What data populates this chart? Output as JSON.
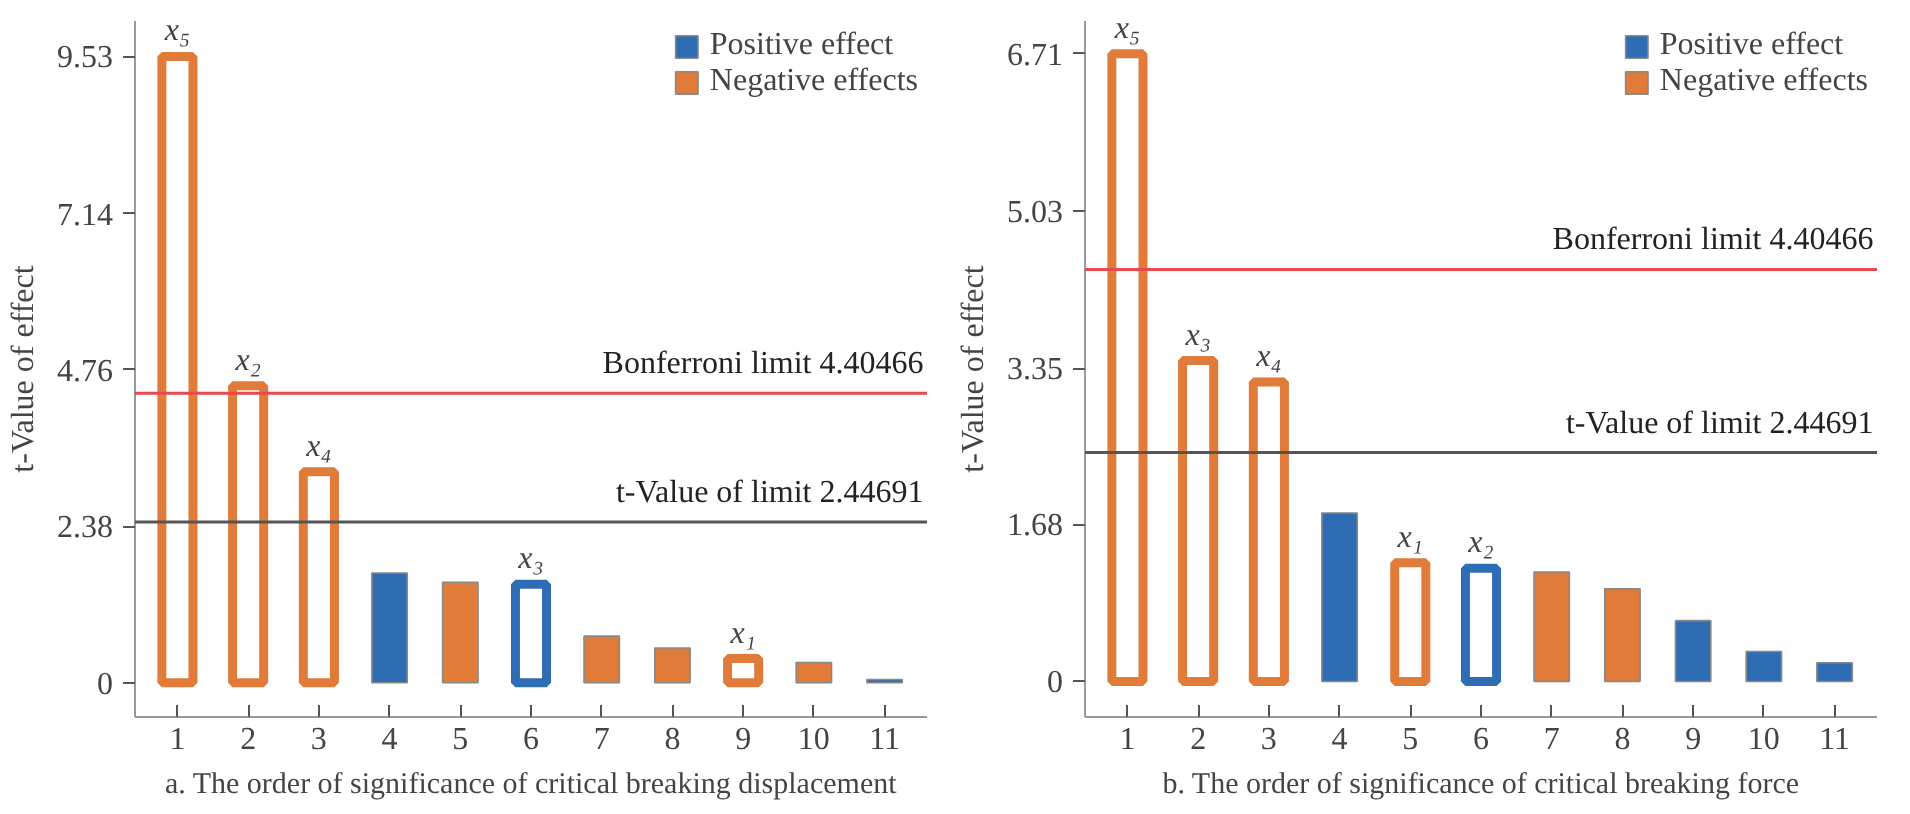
{
  "chart_data": [
    {
      "type": "bar",
      "title": "a. The order of significance of critical breaking displacement",
      "ylabel": "t-Value of effect",
      "categories": [
        "1",
        "2",
        "3",
        "4",
        "5",
        "6",
        "7",
        "8",
        "9",
        "10",
        "11"
      ],
      "series": [
        {
          "name": "Positive effect",
          "color": "#2e6db4",
          "values": [
            null,
            null,
            null,
            1.67,
            null,
            1.5,
            null,
            null,
            null,
            null,
            0.05
          ]
        },
        {
          "name": "Negative effects",
          "color": "#e07b39",
          "values": [
            9.53,
            4.52,
            3.21,
            null,
            1.53,
            null,
            0.71,
            0.53,
            0.37,
            0.31,
            null
          ]
        }
      ],
      "ylim": [
        -0.52,
        10.07
      ],
      "yticks": [
        0,
        2.38,
        4.76,
        7.14,
        9.53
      ],
      "grid": false,
      "legend": "top right",
      "ref_lines": [
        {
          "axis": "y",
          "value": 4.40466,
          "label": "Bonferroni limit 4.40466",
          "color": "#e8494f"
        },
        {
          "axis": "y",
          "value": 2.44691,
          "label": "t-Value of limit 2.44691",
          "color": "#555555"
        }
      ],
      "annotations": [
        {
          "text": "x₅",
          "x": "1",
          "y": 9.53
        },
        {
          "text": "x₂",
          "x": "2",
          "y": 4.52
        },
        {
          "text": "x₄",
          "x": "3",
          "y": 3.21
        },
        {
          "text": "x₃",
          "x": "6",
          "y": 1.5
        },
        {
          "text": "x₁",
          "x": "9",
          "y": 0.37
        }
      ]
    },
    {
      "type": "bar",
      "title": "b. The order of significance of critical breaking force",
      "ylabel": "t-Value of effect",
      "categories": [
        "1",
        "2",
        "3",
        "4",
        "5",
        "6",
        "7",
        "8",
        "9",
        "10",
        "11"
      ],
      "series": [
        {
          "name": "Positive effect",
          "color": "#2e6db4",
          "values": [
            null,
            null,
            null,
            1.8,
            null,
            1.21,
            null,
            null,
            0.65,
            0.32,
            0.2
          ]
        },
        {
          "name": "Negative effects",
          "color": "#e07b39",
          "values": [
            6.71,
            3.43,
            3.2,
            null,
            1.27,
            null,
            1.17,
            0.99,
            null,
            null,
            null
          ]
        }
      ],
      "ylim": [
        -0.38,
        7.06
      ],
      "yticks": [
        0,
        1.68,
        3.35,
        5.03,
        6.71
      ],
      "grid": false,
      "legend": "top right",
      "ref_lines": [
        {
          "axis": "y",
          "value": 4.40466,
          "label": "Bonferroni limit 4.40466",
          "color": "#e8494f"
        },
        {
          "axis": "y",
          "value": 2.44691,
          "label": "t-Value of limit 2.44691",
          "color": "#555555"
        }
      ],
      "annotations": [
        {
          "text": "x₅",
          "x": "1",
          "y": 6.71
        },
        {
          "text": "x₃",
          "x": "2",
          "y": 3.43
        },
        {
          "text": "x₄",
          "x": "3",
          "y": 3.2
        },
        {
          "text": "x₁",
          "x": "5",
          "y": 1.27
        },
        {
          "text": "x₂",
          "x": "6",
          "y": 1.21
        }
      ]
    }
  ]
}
